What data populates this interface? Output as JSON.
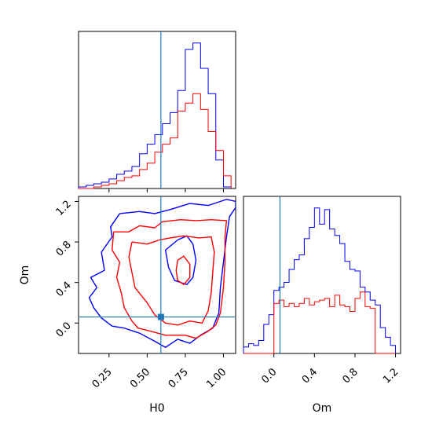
{
  "chart_data": {
    "type": "corner",
    "parameters": [
      "H0",
      "Om"
    ],
    "colors": {
      "blue": "#0000ff",
      "red": "#ff0000",
      "truth": "#1f77b4"
    },
    "truth": {
      "H0": 0.59,
      "Om": 0.06
    },
    "panels": [
      {
        "id": "hist_H0",
        "type": "histogram",
        "xlim": [
          0.05,
          1.08
        ],
        "x_edges": [
          0.05,
          0.1,
          0.15,
          0.2,
          0.25,
          0.3,
          0.35,
          0.4,
          0.45,
          0.5,
          0.55,
          0.6,
          0.65,
          0.7,
          0.75,
          0.8,
          0.85,
          0.9,
          0.95,
          1.0,
          1.05
        ],
        "series": [
          {
            "color": "blue",
            "counts": [
              1,
              2,
              3,
              4,
              6,
              9,
              11,
              14,
              22,
              28,
              34,
              41,
              48,
              62,
              88,
              92,
              76,
              60,
              18,
              1
            ]
          },
          {
            "color": "red",
            "counts": [
              0,
              0,
              1,
              2,
              3,
              5,
              7,
              8,
              12,
              16,
              23,
              28,
              32,
              49,
              54,
              60,
              50,
              36,
              24,
              8
            ]
          }
        ]
      },
      {
        "id": "hist_Om",
        "type": "histogram",
        "xlim": [
          -0.3,
          1.25
        ],
        "x_edges": [
          -0.3,
          -0.25,
          -0.2,
          -0.15,
          -0.1,
          -0.05,
          0.0,
          0.05,
          0.1,
          0.15,
          0.2,
          0.25,
          0.3,
          0.35,
          0.4,
          0.45,
          0.5,
          0.55,
          0.6,
          0.65,
          0.7,
          0.75,
          0.8,
          0.85,
          0.9,
          0.95,
          1.0,
          1.05,
          1.1,
          1.15,
          1.2
        ],
        "series": [
          {
            "color": "blue",
            "counts": [
              4,
              6,
              5,
              8,
              18,
              24,
              39,
              41,
              44,
              52,
              58,
              61,
              71,
              78,
              90,
              80,
              89,
              77,
              73,
              68,
              57,
              52,
              51,
              41,
              38,
              33,
              30,
              16,
              10,
              5
            ]
          },
          {
            "color": "red",
            "counts": [
              0,
              0,
              0,
              0,
              0,
              0,
              31,
              33,
              29,
              31,
              29,
              31,
              34,
              30,
              32,
              33,
              34,
              29,
              36,
              30,
              29,
              26,
              34,
              38,
              29,
              28,
              0,
              0,
              0,
              0
            ]
          }
        ]
      },
      {
        "id": "contour_H0_Om",
        "type": "contour",
        "xlim": [
          0.05,
          1.08
        ],
        "ylim": [
          -0.3,
          1.25
        ],
        "x_ticks": [
          "0.25",
          "0.50",
          "0.75",
          "1.00"
        ],
        "y_ticks": [
          "0.0",
          "0.4",
          "0.8",
          "1.2"
        ],
        "xlabel": "H0",
        "ylabel": "Om",
        "contours": [
          {
            "color": "blue",
            "points": [
              [
                0.32,
                1.08
              ],
              [
                0.45,
                1.1
              ],
              [
                0.55,
                1.08
              ],
              [
                0.65,
                1.12
              ],
              [
                0.78,
                1.18
              ],
              [
                0.9,
                1.16
              ],
              [
                1.02,
                1.22
              ],
              [
                1.08,
                1.2
              ],
              [
                1.08,
                1.14
              ],
              [
                1.04,
                1.05
              ],
              [
                1.02,
                0.85
              ],
              [
                1.0,
                0.6
              ],
              [
                0.98,
                0.35
              ],
              [
                0.97,
                0.1
              ],
              [
                0.93,
                -0.05
              ],
              [
                0.85,
                -0.12
              ],
              [
                0.78,
                -0.2
              ],
              [
                0.7,
                -0.16
              ],
              [
                0.62,
                -0.24
              ],
              [
                0.55,
                -0.18
              ],
              [
                0.45,
                -0.1
              ],
              [
                0.35,
                -0.05
              ],
              [
                0.27,
                -0.03
              ],
              [
                0.2,
                0.05
              ],
              [
                0.15,
                0.15
              ],
              [
                0.12,
                0.25
              ],
              [
                0.17,
                0.35
              ],
              [
                0.13,
                0.45
              ],
              [
                0.22,
                0.52
              ],
              [
                0.2,
                0.7
              ],
              [
                0.27,
                0.85
              ],
              [
                0.26,
                0.95
              ],
              [
                0.32,
                1.08
              ]
            ]
          },
          {
            "color": "blue",
            "points": [
              [
                0.7,
                0.82
              ],
              [
                0.76,
                0.86
              ],
              [
                0.8,
                0.78
              ],
              [
                0.82,
                0.62
              ],
              [
                0.8,
                0.45
              ],
              [
                0.76,
                0.38
              ],
              [
                0.68,
                0.42
              ],
              [
                0.64,
                0.55
              ],
              [
                0.62,
                0.72
              ],
              [
                0.7,
                0.82
              ]
            ]
          },
          {
            "color": "red",
            "points": [
              [
                0.28,
                0.9
              ],
              [
                0.38,
                0.9
              ],
              [
                0.45,
                0.96
              ],
              [
                0.55,
                0.94
              ],
              [
                0.6,
                1.0
              ],
              [
                0.72,
                1.02
              ],
              [
                0.82,
                1.01
              ],
              [
                0.92,
                1.02
              ],
              [
                1.02,
                1.01
              ],
              [
                1.01,
                0.85
              ],
              [
                1.01,
                0.6
              ],
              [
                1.0,
                0.35
              ],
              [
                0.98,
                0.1
              ],
              [
                0.95,
                -0.02
              ],
              [
                0.9,
                -0.08
              ],
              [
                0.82,
                -0.15
              ],
              [
                0.75,
                -0.12
              ],
              [
                0.62,
                -0.12
              ],
              [
                0.52,
                -0.08
              ],
              [
                0.44,
                -0.05
              ],
              [
                0.4,
                0.02
              ],
              [
                0.35,
                0.15
              ],
              [
                0.33,
                0.3
              ],
              [
                0.3,
                0.45
              ],
              [
                0.32,
                0.6
              ],
              [
                0.27,
                0.72
              ],
              [
                0.28,
                0.9
              ]
            ]
          },
          {
            "color": "red",
            "points": [
              [
                0.4,
                0.8
              ],
              [
                0.5,
                0.78
              ],
              [
                0.58,
                0.82
              ],
              [
                0.65,
                0.84
              ],
              [
                0.74,
                0.86
              ],
              [
                0.84,
                0.84
              ],
              [
                0.92,
                0.85
              ],
              [
                0.94,
                0.7
              ],
              [
                0.93,
                0.5
              ],
              [
                0.92,
                0.3
              ],
              [
                0.9,
                0.12
              ],
              [
                0.86,
                0.0
              ],
              [
                0.78,
                0.02
              ],
              [
                0.7,
                -0.02
              ],
              [
                0.62,
                0.0
              ],
              [
                0.55,
                0.08
              ],
              [
                0.5,
                0.2
              ],
              [
                0.42,
                0.35
              ],
              [
                0.4,
                0.5
              ],
              [
                0.38,
                0.65
              ],
              [
                0.4,
                0.8
              ]
            ]
          },
          {
            "color": "red",
            "points": [
              [
                0.7,
                0.62
              ],
              [
                0.74,
                0.66
              ],
              [
                0.78,
                0.58
              ],
              [
                0.78,
                0.45
              ],
              [
                0.74,
                0.38
              ],
              [
                0.7,
                0.42
              ],
              [
                0.69,
                0.52
              ],
              [
                0.7,
                0.62
              ]
            ]
          }
        ]
      }
    ]
  }
}
